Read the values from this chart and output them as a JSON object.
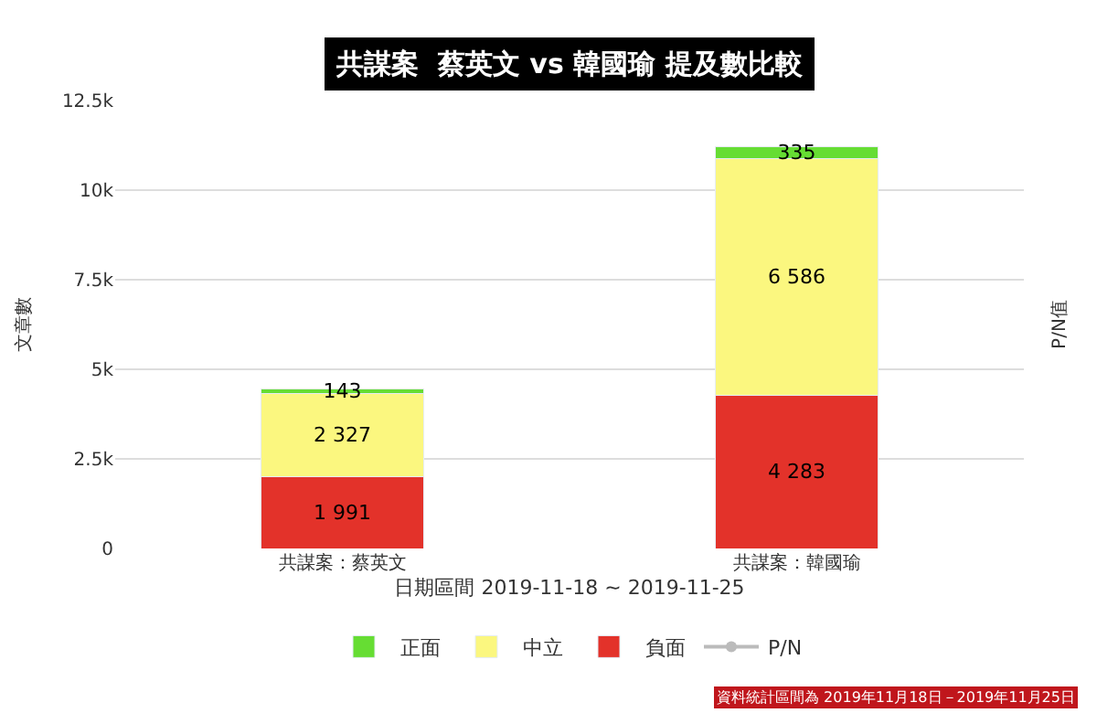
{
  "chart_data": {
    "type": "bar",
    "stacked": true,
    "title": "共謀案  蔡英文 vs 韓國瑜 提及數比較",
    "xlabel": "日期區間 2019-11-18 ~ 2019-11-25",
    "ylabel": "文章數",
    "y2label": "P/N值",
    "categories": [
      "共謀案：蔡英文",
      "共謀案：韓國瑜"
    ],
    "series": [
      {
        "name": "負面",
        "color": "#e3322a",
        "values": [
          1991,
          4283
        ],
        "value_labels": [
          "1 991",
          "4 283"
        ]
      },
      {
        "name": "中立",
        "color": "#fbf77f",
        "values": [
          2327,
          6586
        ],
        "value_labels": [
          "2 327",
          "6 586"
        ]
      },
      {
        "name": "正面",
        "color": "#66dd33",
        "values": [
          143,
          335
        ],
        "value_labels": [
          "143",
          "335"
        ]
      },
      {
        "name": "P/N",
        "type": "line",
        "axis": "y2",
        "color": "#bbbbbb",
        "marker": "circle",
        "values": [
          null,
          null
        ]
      }
    ],
    "ylim": [
      0,
      12500
    ],
    "yticks": [
      0,
      {
        "value": 2500,
        "label": "2.5k"
      },
      {
        "value": 5000,
        "label": "5k"
      },
      {
        "value": 7500,
        "label": "7.5k"
      },
      {
        "value": 10000,
        "label": "10k"
      },
      {
        "value": 12500,
        "label": "12.5k"
      }
    ],
    "grid": "y",
    "legend": "bottom",
    "annotations": [
      "資料統計區間為 2019年11月18日－2019年11月25日"
    ]
  }
}
